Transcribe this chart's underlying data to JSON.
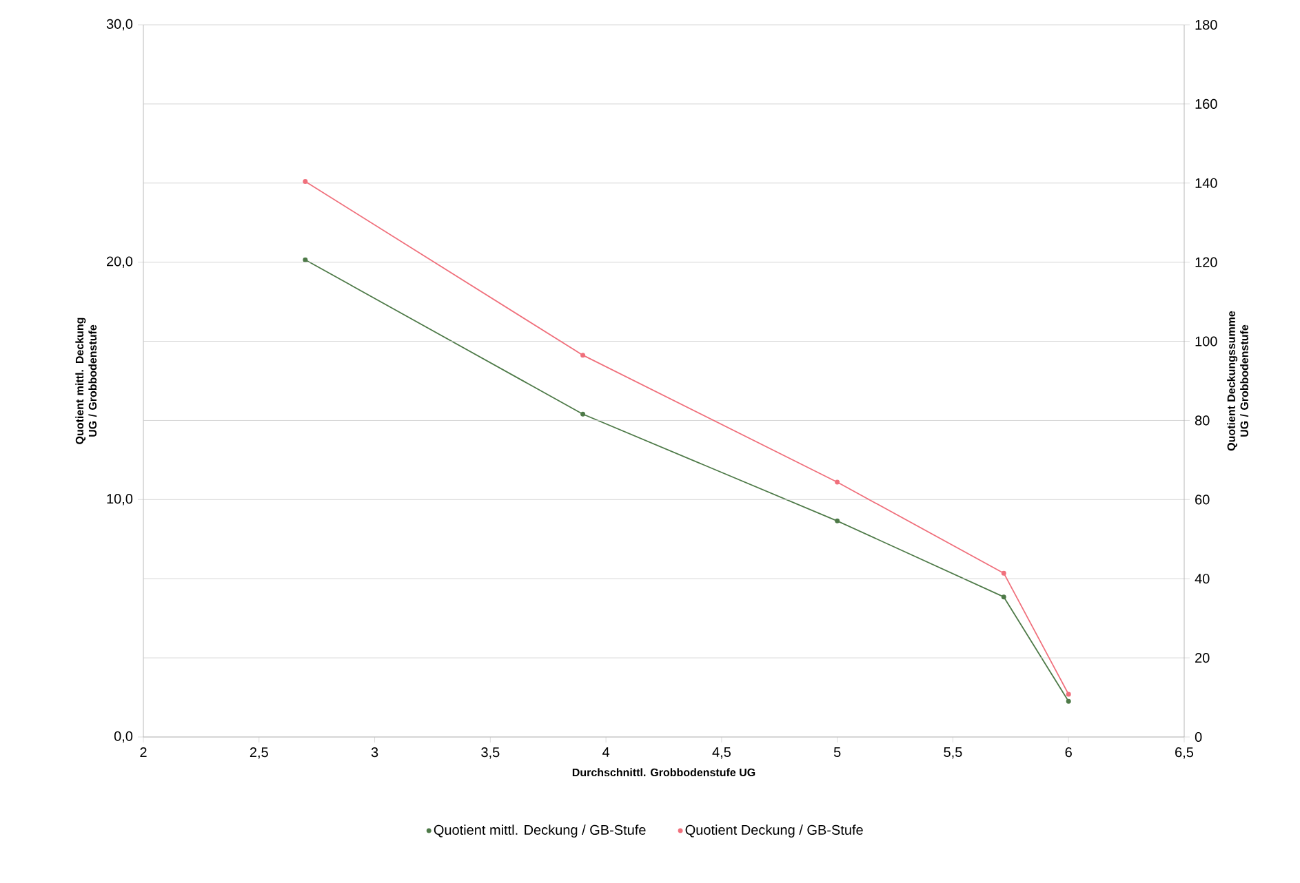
{
  "chart_data": {
    "type": "line",
    "xlabel": "Durchschnittl. Grobbodenstufe UG",
    "ylabel": "Quotient mittl. Deckung UG / Grobbodenstufe",
    "y2label": "Quotient Deckungssumme UG / Grobbodenstufe",
    "x": [
      2.7,
      3.9,
      5,
      5.72,
      6
    ],
    "series": [
      {
        "name": "Quotient mittl. Deckung / GB-Stufe",
        "color": "#4e7a48",
        "values": [
          20.1,
          13.6,
          9.1,
          5.9,
          1.5
        ]
      },
      {
        "name": "Quotient Deckung / GB-Stufe",
        "color": "#f0707c",
        "axis": "y2",
        "values": [
          140.4,
          96.5,
          64.4,
          41.4,
          10.8
        ]
      }
    ],
    "xlim": [
      2,
      6.5
    ],
    "xticks": [
      2,
      {
        "value": 2.5,
        "label": "2,5"
      },
      3,
      {
        "value": 3.5,
        "label": "3,5"
      },
      4,
      {
        "value": 4.5,
        "label": "4,5"
      },
      5,
      {
        "value": 5.5,
        "label": "5,5"
      },
      6,
      {
        "value": 6.5,
        "label": "6,5"
      }
    ],
    "ylim": [
      0,
      30
    ],
    "yticks": [
      {
        "value": 0,
        "label": "0,0"
      },
      {
        "value": 10,
        "label": "10,0"
      },
      {
        "value": 20,
        "label": "20,0"
      },
      {
        "value": 30,
        "label": "30,0"
      }
    ],
    "y2lim": [
      0,
      180
    ],
    "y2ticks": [
      0,
      20,
      40,
      60,
      80,
      100,
      120,
      140,
      160,
      180
    ],
    "grid": "y2",
    "legend": "bottom",
    "marker": "circle",
    "line_style": "solid"
  }
}
